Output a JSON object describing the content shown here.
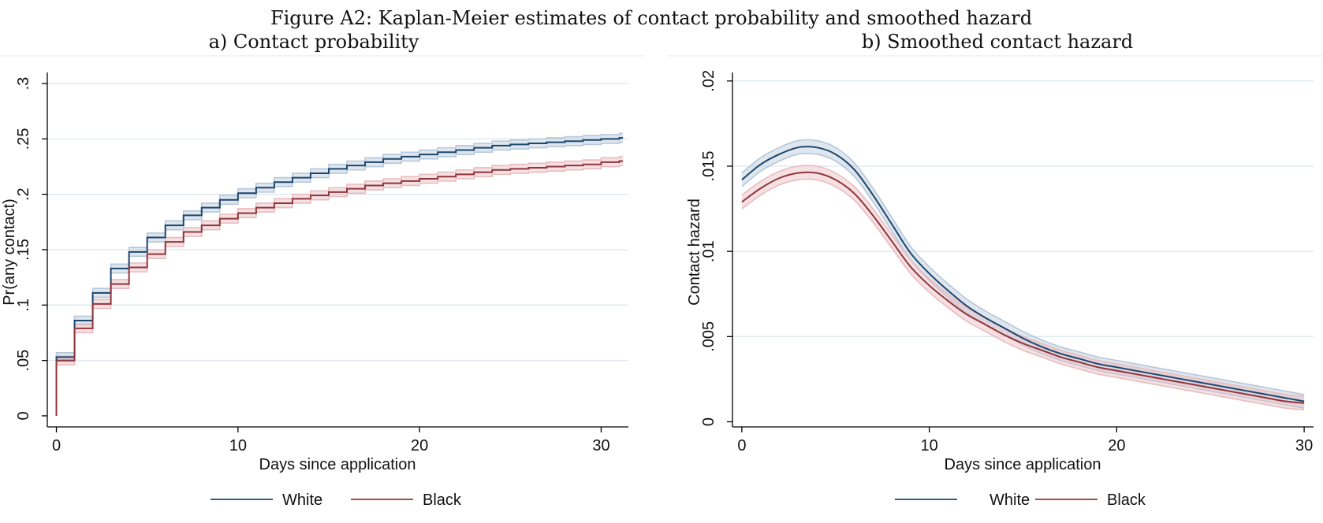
{
  "figure_title": "Figure A2: Kaplan-Meier estimates of contact probability and smoothed hazard",
  "colors": {
    "white": "#1a476f",
    "white_band": "#b7c8da",
    "black": "#90353b",
    "black_band": "#e8bcc0",
    "grid": "#dde8ee"
  },
  "chart_data": [
    {
      "type": "line",
      "step": true,
      "title": "a) Contact probability",
      "xlabel": "Days since application",
      "ylabel": "Pr(any contact)",
      "xlim": [
        -0.5,
        31.5
      ],
      "ylim": [
        -0.01,
        0.31
      ],
      "xticks": [
        0,
        10,
        20,
        30
      ],
      "xtick_labels": [
        "0",
        "10",
        "20",
        "30"
      ],
      "yticks": [
        0,
        0.05,
        0.1,
        0.15,
        0.2,
        0.25,
        0.3
      ],
      "ytick_labels": [
        "0",
        ".05",
        ".1",
        ".15",
        ".2",
        ".25",
        ".3"
      ],
      "grid": true,
      "legend": [
        "White",
        "Black"
      ],
      "legend_position": "bottom",
      "band_halfwidth": 0.004,
      "x": [
        0,
        1,
        2,
        3,
        4,
        5,
        6,
        7,
        8,
        9,
        10,
        11,
        12,
        13,
        14,
        15,
        16,
        17,
        18,
        19,
        20,
        21,
        22,
        23,
        24,
        25,
        26,
        27,
        28,
        29,
        30,
        31
      ],
      "series": [
        {
          "name": "White",
          "values": [
            0.053,
            0.086,
            0.111,
            0.133,
            0.148,
            0.161,
            0.172,
            0.181,
            0.188,
            0.195,
            0.201,
            0.206,
            0.211,
            0.215,
            0.219,
            0.223,
            0.226,
            0.229,
            0.232,
            0.234,
            0.236,
            0.238,
            0.24,
            0.242,
            0.244,
            0.245,
            0.246,
            0.247,
            0.248,
            0.249,
            0.25,
            0.251
          ]
        },
        {
          "name": "Black",
          "values": [
            0.05,
            0.079,
            0.101,
            0.119,
            0.134,
            0.146,
            0.157,
            0.166,
            0.172,
            0.178,
            0.183,
            0.188,
            0.192,
            0.196,
            0.199,
            0.202,
            0.205,
            0.208,
            0.21,
            0.212,
            0.214,
            0.216,
            0.218,
            0.22,
            0.222,
            0.223,
            0.224,
            0.225,
            0.226,
            0.227,
            0.229,
            0.23
          ]
        }
      ]
    },
    {
      "type": "line",
      "title": "b) Smoothed contact hazard",
      "xlabel": "Days since application",
      "ylabel": "Contact hazard",
      "xlim": [
        -0.5,
        30.5
      ],
      "ylim": [
        -0.0003,
        0.0205
      ],
      "xticks": [
        0,
        10,
        20,
        30
      ],
      "xtick_labels": [
        "0",
        "10",
        "20",
        "30"
      ],
      "yticks": [
        0,
        0.005,
        0.01,
        0.015,
        0.02
      ],
      "ytick_labels": [
        "0",
        ".005",
        ".01",
        ".015",
        ".02"
      ],
      "grid": true,
      "legend": [
        "White",
        "Black"
      ],
      "legend_position": "bottom",
      "band_halfwidth": 0.0004,
      "x": [
        0,
        1,
        2,
        3,
        4,
        5,
        6,
        7,
        8,
        9,
        10,
        11,
        12,
        13,
        14,
        15,
        16,
        17,
        18,
        19,
        20,
        21,
        22,
        23,
        24,
        25,
        26,
        27,
        28,
        29,
        30
      ],
      "series": [
        {
          "name": "White",
          "values": [
            0.0142,
            0.0151,
            0.0157,
            0.0161,
            0.0161,
            0.0157,
            0.0148,
            0.0133,
            0.0116,
            0.0099,
            0.0087,
            0.0077,
            0.0068,
            0.0061,
            0.0055,
            0.0049,
            0.0044,
            0.004,
            0.0037,
            0.0034,
            0.0032,
            0.003,
            0.0028,
            0.0026,
            0.0024,
            0.0022,
            0.002,
            0.0018,
            0.0016,
            0.0014,
            0.0012
          ]
        },
        {
          "name": "Black",
          "values": [
            0.0129,
            0.0137,
            0.0143,
            0.0146,
            0.0146,
            0.0142,
            0.0134,
            0.0121,
            0.0106,
            0.0091,
            0.008,
            0.0071,
            0.0063,
            0.0057,
            0.0051,
            0.0046,
            0.0042,
            0.0038,
            0.0035,
            0.0032,
            0.003,
            0.0028,
            0.0026,
            0.0024,
            0.0022,
            0.002,
            0.0018,
            0.0016,
            0.0014,
            0.0012,
            0.0011
          ]
        }
      ]
    }
  ]
}
